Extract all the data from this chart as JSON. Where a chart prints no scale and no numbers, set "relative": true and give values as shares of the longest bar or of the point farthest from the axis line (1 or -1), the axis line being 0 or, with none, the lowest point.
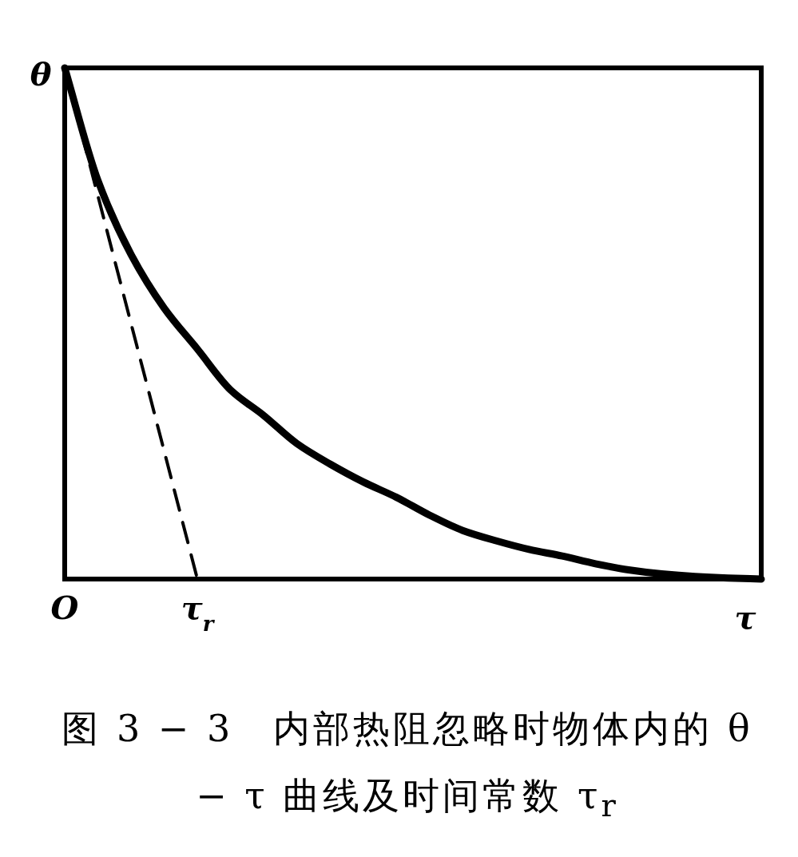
{
  "chart_data": {
    "type": "line",
    "title": "图 3 − 3　内部热阻忽略时物体内的 θ − τ 曲线及时间常数 τ$_{r}$",
    "xlabel": "τ",
    "ylabel": "θ",
    "relative": true,
    "categories": [
      "O",
      null,
      null,
      null,
      "τ$_{r}$",
      null,
      null,
      null,
      null,
      null,
      null,
      null,
      null,
      null,
      null,
      null,
      null,
      null,
      null,
      null,
      null,
      null
    ],
    "series": [
      {
        "color": "#000000",
        "line_style": "solid",
        "values": [
          1,
          0.78,
          0.635,
          0.53,
          0.45,
          0.37,
          0.32,
          0.265,
          0.225,
          0.19,
          0.16,
          0.125,
          0.095,
          0.075,
          0.058,
          0.045,
          0.03,
          0.018,
          0.01,
          0.005,
          0.002,
          0
        ]
      },
      {
        "color": "#000000",
        "line_style": "dashed",
        "values": [
          1,
          0.75,
          0.5,
          0.25,
          0,
          null,
          null,
          null,
          null,
          null,
          null,
          null,
          null,
          null,
          null,
          null,
          null,
          null,
          null,
          null,
          null,
          null
        ]
      }
    ]
  }
}
